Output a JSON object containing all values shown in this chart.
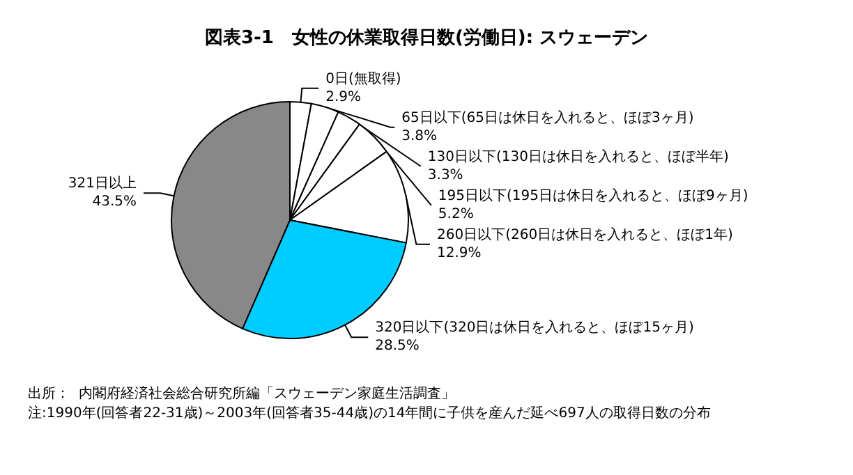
{
  "chart_data": {
    "type": "pie",
    "title": "図表3-1　女性の休業取得日数(労働日): スウェーデン",
    "categories": [
      "0日(無取得)",
      "65日以下(65日は休日を入れると、ほぼ3ヶ月)",
      "130日以下(130日は休日を入れると、ほぼ半年)",
      "195日以下(195日は休日を入れると、ほぼ9ヶ月)",
      "260日以下(260日は休日を入れると、ほぼ1年)",
      "320日以下(320日は休日を入れると、ほぼ15ヶ月)",
      "321日以上"
    ],
    "values": [
      2.9,
      3.8,
      3.3,
      5.2,
      12.9,
      28.5,
      43.5
    ],
    "value_labels": [
      "2.9%",
      "3.8%",
      "3.3%",
      "5.2%",
      "12.9%",
      "28.5%",
      "43.5%"
    ],
    "colors": [
      "#ffffff",
      "#ffffff",
      "#ffffff",
      "#ffffff",
      "#ffffff",
      "#00ccff",
      "#888888"
    ],
    "legend": false,
    "annotations": [
      "出所：  内閣府経済社会総合研究所編「スウェーデン家庭生活調査」",
      "注:1990年(回答者22-31歳)～2003年(回答者35-44歳)の14年間に子供を産んだ延べ697人の取得日数の分布"
    ]
  }
}
